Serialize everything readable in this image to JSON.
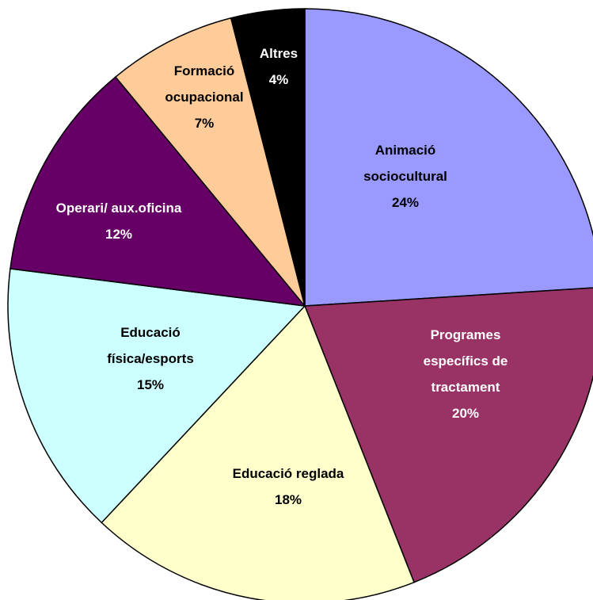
{
  "chart_data": {
    "type": "pie",
    "categories": [
      "Animació\nsociocultural",
      "Programes\nespecífics de\ntractament",
      "Educació reglada",
      "Educació\nfísica/esports",
      "Operari/ aux.oficina",
      "Formació\nocupacional",
      "Altres"
    ],
    "values": [
      24,
      20,
      18,
      15,
      12,
      7,
      4
    ],
    "value_labels": [
      "24%",
      "20%",
      "18%",
      "15%",
      "12%",
      "7%",
      "4%"
    ],
    "colors": [
      "#9999ff",
      "#993366",
      "#ffffcc",
      "#ccffff",
      "#660066",
      "#ffcc99",
      "#000000"
    ]
  }
}
